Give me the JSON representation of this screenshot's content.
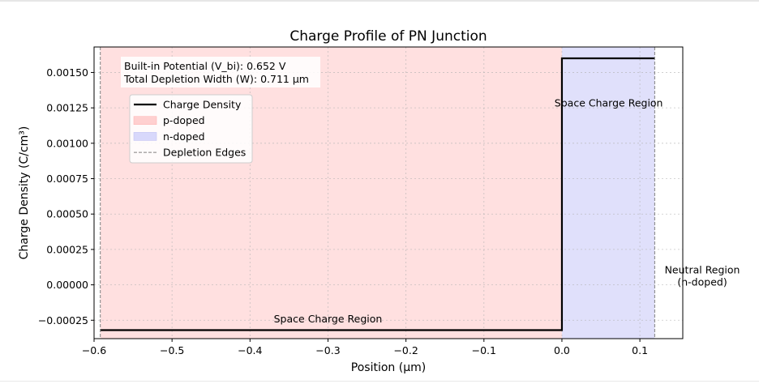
{
  "chart_data": {
    "type": "line",
    "title": "Charge Profile of PN Junction",
    "xlabel": "Position (μm)",
    "ylabel": "Charge Density (C/cm³)",
    "xlim": [
      -0.6,
      0.155
    ],
    "ylim": [
      -0.00038,
      0.00168
    ],
    "xticks": [
      -0.6,
      -0.5,
      -0.4,
      -0.3,
      -0.2,
      -0.1,
      0.0,
      0.1
    ],
    "xtick_labels": [
      "−0.6",
      "−0.5",
      "−0.4",
      "−0.3",
      "−0.2",
      "−0.1",
      "0.0",
      "0.1"
    ],
    "yticks": [
      -0.00025,
      0.0,
      0.00025,
      0.0005,
      0.00075,
      0.001,
      0.00125,
      0.0015
    ],
    "ytick_labels": [
      "−0.00025",
      "0.00000",
      "0.00025",
      "0.00050",
      "0.00075",
      "0.00100",
      "0.00125",
      "0.00150"
    ],
    "grid": true,
    "legend_position": "upper-left",
    "series": [
      {
        "name": "Charge Density",
        "color": "#000000",
        "x": [
          -0.592,
          0.0,
          0.0,
          0.119
        ],
        "y": [
          -0.00032,
          -0.00032,
          0.0016,
          0.0016
        ]
      }
    ],
    "regions": [
      {
        "name": "p-doped",
        "x0": -0.592,
        "x1": 0.0,
        "color": "#ffe0e0"
      },
      {
        "name": "n-doped",
        "x0": 0.0,
        "x1": 0.119,
        "color": "#e0e0fb"
      }
    ],
    "depletion_edges": {
      "name": "Depletion Edges",
      "x": [
        -0.592,
        0.119
      ],
      "color": "#808080"
    },
    "info_box": [
      "Built-in Potential (V_bi): 0.652 V",
      "Total Depletion Width (W): 0.711 μm"
    ],
    "annotations": [
      {
        "text": "Space Charge Region",
        "x": -0.3,
        "y": -0.000265
      },
      {
        "text": "Space Charge Region",
        "x": 0.06,
        "y": 0.00126
      },
      {
        "text": "Neutral Region\n(n-doped)",
        "x": 0.18,
        "y": 8e-05
      }
    ]
  }
}
